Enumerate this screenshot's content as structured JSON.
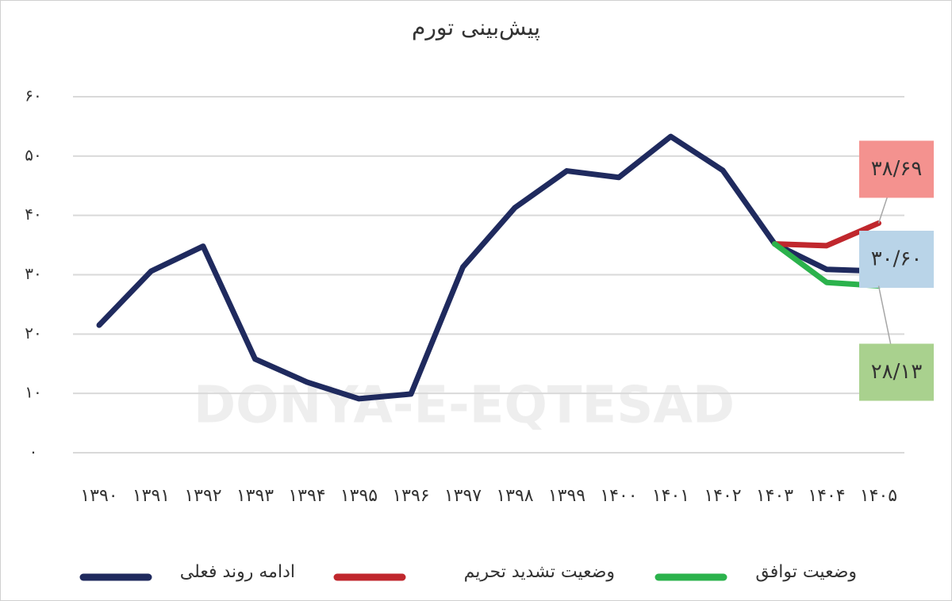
{
  "chart_data": {
    "type": "line",
    "title": "پیش‌بینی تورم",
    "watermark": "DONYA-E-EQTESAD",
    "categories": [
      "۱۳۹۰",
      "۱۳۹۱",
      "۱۳۹۲",
      "۱۳۹۳",
      "۱۳۹۴",
      "۱۳۹۵",
      "۱۳۹۶",
      "۱۳۹۷",
      "۱۳۹۸",
      "۱۳۹۹",
      "۱۴۰۰",
      "۱۴۰۱",
      "۱۴۰۲",
      "۱۴۰۳",
      "۱۴۰۴",
      "۱۴۰۵"
    ],
    "series": [
      {
        "name": "ادامه روند فعلی",
        "color": "#1f2a5e",
        "values": [
          21.5,
          30.6,
          34.8,
          15.8,
          11.9,
          9.1,
          9.9,
          31.3,
          41.3,
          47.5,
          46.4,
          53.3,
          47.6,
          35.2,
          30.9,
          30.6
        ],
        "value_labels": [
          null,
          null,
          null,
          null,
          null,
          null,
          null,
          null,
          null,
          null,
          null,
          null,
          null,
          null,
          null,
          "۳۰/۶۰"
        ],
        "label_color": "#b9d4e8"
      },
      {
        "name": "وضعیت تشدید تحریم",
        "color": "#c0272d",
        "values": [
          null,
          null,
          null,
          null,
          null,
          null,
          null,
          null,
          null,
          null,
          null,
          null,
          null,
          35.2,
          34.9,
          38.69
        ],
        "value_labels": [
          null,
          null,
          null,
          null,
          null,
          null,
          null,
          null,
          null,
          null,
          null,
          null,
          null,
          null,
          null,
          "۳۸/۶۹"
        ],
        "label_color": "#f4928f"
      },
      {
        "name": "وضعیت توافق",
        "color": "#2bb24c",
        "values": [
          null,
          null,
          null,
          null,
          null,
          null,
          null,
          null,
          null,
          null,
          null,
          null,
          null,
          35.2,
          28.7,
          28.13
        ],
        "value_labels": [
          null,
          null,
          null,
          null,
          null,
          null,
          null,
          null,
          null,
          null,
          null,
          null,
          null,
          null,
          null,
          "۲۸/۱۳"
        ],
        "label_color": "#a9d18e"
      }
    ],
    "ylim": [
      0,
      60
    ],
    "yticks": [
      {
        "value": 0,
        "label": "۰"
      },
      {
        "value": 10,
        "label": "۱۰"
      },
      {
        "value": 20,
        "label": "۲۰"
      },
      {
        "value": 30,
        "label": "۳۰"
      },
      {
        "value": 40,
        "label": "۴۰"
      },
      {
        "value": 50,
        "label": "۵۰"
      },
      {
        "value": 60,
        "label": "۶۰"
      }
    ],
    "grid": true
  }
}
